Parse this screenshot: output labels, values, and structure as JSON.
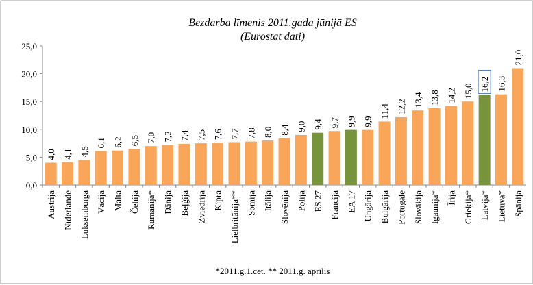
{
  "chart_data": {
    "type": "bar",
    "title": "Bezdarba līmenis 2011.gada jūnijā ES",
    "subtitle": "(Eurostat dati)",
    "footnote": "*2011.g.1.cet. ** 2011.g. aprīlis",
    "categories": [
      "Austrija",
      "Nīderlande",
      "Luksemburga",
      "Vācija",
      "Malta",
      "Čehija",
      "Rumānija*",
      "Dānija",
      "Beļģija",
      "Zviedrija",
      "Kipra",
      "Lielbritānija**",
      "Somija",
      "Itālija",
      "Slovēnija",
      "Polija",
      "ES 27",
      "Francija",
      "EA 17",
      "Ungārija",
      "Bulgārija",
      "Portugāle",
      "Slovākija",
      "Igaunija*",
      "Īrija",
      "Grieķija*",
      "Latvija*",
      "Lietuva*",
      "Spānija"
    ],
    "values": [
      4.0,
      4.1,
      4.5,
      6.1,
      6.2,
      6.5,
      7.0,
      7.2,
      7.4,
      7.5,
      7.6,
      7.7,
      7.8,
      8.0,
      8.4,
      9.0,
      9.4,
      9.7,
      9.9,
      9.9,
      11.4,
      12.2,
      13.4,
      13.8,
      14.2,
      15.0,
      16.2,
      16.3,
      21.0
    ],
    "value_labels": [
      "4,0",
      "4,1",
      "4,5",
      "6,1",
      "6,2",
      "6,5",
      "7,0",
      "7,2",
      "7,4",
      "7,5",
      "7,6",
      "7,7",
      "7,8",
      "8,0",
      "8,4",
      "9,0",
      "9,4",
      "9,7",
      "9,9",
      "9,9",
      "11,4",
      "12,2",
      "13,4",
      "13,8",
      "14,2",
      "15,0",
      "16,2",
      "16,3",
      "21,0"
    ],
    "colors": [
      "#f9a65a",
      "#f9a65a",
      "#f9a65a",
      "#f9a65a",
      "#f9a65a",
      "#f9a65a",
      "#f9a65a",
      "#f9a65a",
      "#f9a65a",
      "#f9a65a",
      "#f9a65a",
      "#f9a65a",
      "#f9a65a",
      "#f9a65a",
      "#f9a65a",
      "#f9a65a",
      "#77933c",
      "#f9a65a",
      "#77933c",
      "#f9a65a",
      "#f9a65a",
      "#f9a65a",
      "#f9a65a",
      "#f9a65a",
      "#f9a65a",
      "#f9a65a",
      "#77933c",
      "#f9a65a",
      "#f9a65a"
    ],
    "boxed_value_labels": [
      26
    ],
    "ylim": [
      0,
      25
    ],
    "yticks": [
      {
        "value": 0,
        "label": "0,0"
      },
      {
        "value": 5,
        "label": "5,0"
      },
      {
        "value": 10,
        "label": "10,0"
      },
      {
        "value": 15,
        "label": "15,0"
      },
      {
        "value": 20,
        "label": "20,0"
      },
      {
        "value": 25,
        "label": "25,0"
      }
    ],
    "grid": false
  }
}
